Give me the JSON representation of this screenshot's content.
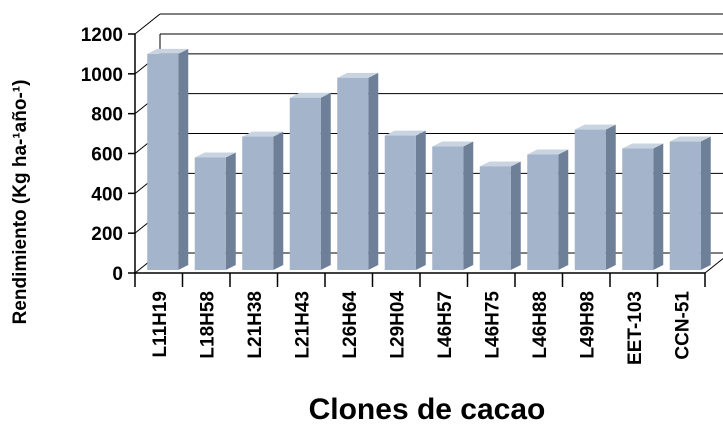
{
  "chart_data": {
    "type": "bar",
    "style": "3d",
    "xlabel": "Clones de cacao",
    "ylabel": "Rendimiento (Kg ha-¹año-¹)",
    "ylim": [
      0,
      1200
    ],
    "yticks": [
      "0",
      "200",
      "400",
      "600",
      "800",
      "1000",
      "1200"
    ],
    "grid": true,
    "categories": [
      "L11H19",
      "L18H58",
      "L21H38",
      "L21H43",
      "L26H64",
      "L29H04",
      "L46H57",
      "L46H75",
      "L46H88",
      "L49H98",
      "EET-103",
      "CCN-51"
    ],
    "values": [
      1100,
      580,
      685,
      880,
      980,
      690,
      635,
      535,
      595,
      720,
      625,
      660
    ],
    "colors": {
      "front": "#a4b4ca",
      "side": "#6e8098",
      "top": "#c9d4e2",
      "axis": "#000000"
    }
  }
}
